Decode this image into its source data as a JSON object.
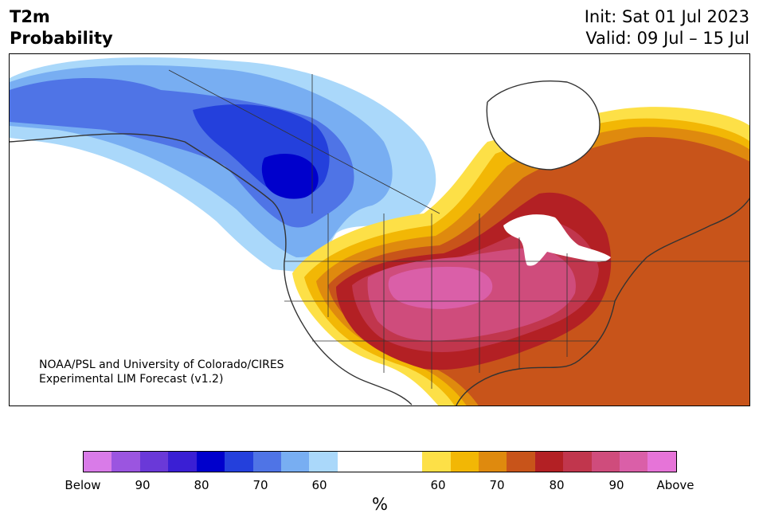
{
  "title": {
    "line1": "T2m",
    "line2": "Probability"
  },
  "dates": {
    "init": "Init: Sat 01 Jul 2023",
    "valid": "Valid: 09 Jul – 15 Jul"
  },
  "credit": {
    "line1": "NOAA/PSL and University of Colorado/CIRES",
    "line2": "Experimental LIM Forecast (v1.2)"
  },
  "colorbar": {
    "unit": "%",
    "tick_labels": [
      "Below",
      "90",
      "80",
      "70",
      "60",
      "60",
      "70",
      "80",
      "90",
      "Above"
    ],
    "colors": [
      "#d97be8",
      "#9b55e0",
      "#6a39d8",
      "#3a1fd4",
      "#0000cc",
      "#2440dc",
      "#4f74e6",
      "#78aef2",
      "#aad8fa",
      "#ffffff",
      "#fde047",
      "#f2b705",
      "#df8a0e",
      "#c8541a",
      "#b32024",
      "#c1364d",
      "#cf4c7c",
      "#da5fa8",
      "#e674d8"
    ]
  },
  "map_colors": {
    "ocean": "#ffffff",
    "cold_60": "#aad8fa",
    "cold_70": "#78aef2",
    "cold_80": "#4f74e6",
    "cold_85": "#2440dc",
    "cold_90": "#0000cc",
    "warm_55": "#fde047",
    "warm_60": "#f2b705",
    "warm_65": "#df8a0e",
    "warm_70": "#c8541a",
    "warm_80": "#b32024",
    "warm_85": "#c1364d",
    "warm_90": "#cf4c7c",
    "warm_95": "#da5fa8",
    "lakes": "#ffffff",
    "borders": "#333333"
  }
}
